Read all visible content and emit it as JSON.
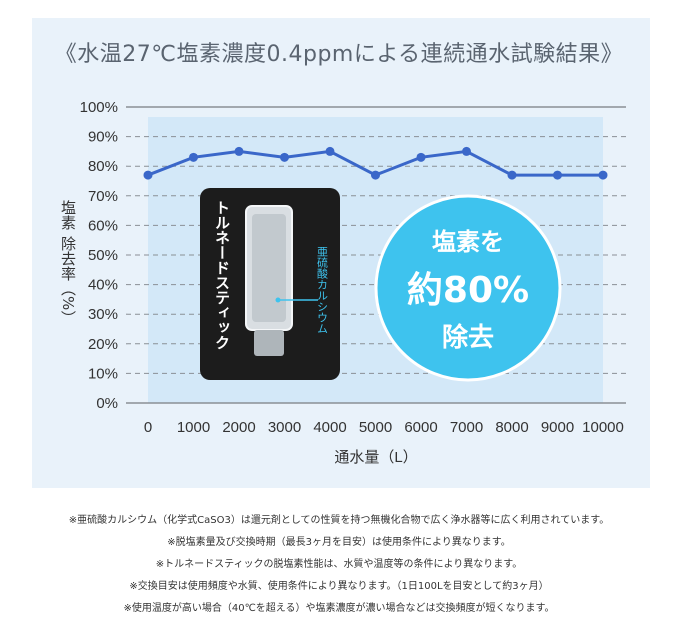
{
  "chart_data": {
    "type": "line",
    "title": "《水温27℃塩素濃度0.4ppmによる連続通水試験結果》",
    "xlabel": "通水量（L）",
    "ylabel": "塩素除去率（%）",
    "x": [
      0,
      1000,
      2000,
      3000,
      4000,
      5000,
      6000,
      7000,
      8000,
      9000,
      10000
    ],
    "series": [
      {
        "values": [
          77,
          83,
          85,
          83,
          85,
          77,
          83,
          85,
          77,
          77,
          77
        ]
      }
    ],
    "ylim": [
      0,
      100
    ],
    "yticks": [
      "100%",
      "90%",
      "80%",
      "70%",
      "60%",
      "50%",
      "40%",
      "30%",
      "20%",
      "10%",
      "0%"
    ],
    "xticks": [
      "0",
      "1000",
      "2000",
      "3000",
      "4000",
      "5000",
      "6000",
      "7000",
      "8000",
      "9000",
      "10000"
    ],
    "grid": true,
    "line_color": "#3a67c9",
    "area_color": "#d3e8f8"
  },
  "product": {
    "name": "トルネードスティック",
    "component_label": "亜硫酸カルシウム"
  },
  "badge": {
    "line1": "塩素を",
    "line2": "約80%",
    "line3": "除去",
    "color": "#3ec3ee"
  },
  "notes": [
    "※亜硫酸カルシウム（化学式CaSO3）は還元剤としての性質を持つ無機化合物で広く浄水器等に広く利用されています。",
    "※脱塩素量及び交換時期（最長3ヶ月を目安）は使用条件により異なります。",
    "※トルネードスティックの脱塩素性能は、水質や温度等の条件により異なります。",
    "※交換目安は使用頻度や水質、使用条件により異なります。（1日100Lを目安として約3ヶ月）",
    "※使用温度が高い場合（40℃を超える）や塩素濃度が濃い場合などは交換頻度が短くなります。"
  ]
}
